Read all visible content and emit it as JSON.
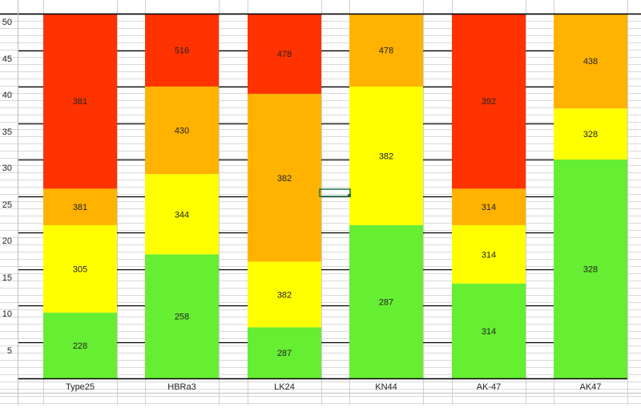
{
  "chart_data": {
    "type": "bar",
    "stacked": true,
    "categories": [
      "Type25",
      "HBRa3",
      "LK24",
      "KN44",
      "AK-47",
      "AK47"
    ],
    "ylim": [
      0,
      50
    ],
    "yticks": [
      5,
      10,
      15,
      20,
      25,
      30,
      35,
      40,
      45,
      50
    ],
    "grid": true,
    "legend": "none",
    "colors": {
      "green": "#66ee33",
      "yellow": "#ffff00",
      "orange": "#ffb300",
      "red": "#ff3300"
    },
    "stacks": [
      {
        "category": "Type25",
        "segments": [
          {
            "from": 0,
            "to": 9,
            "color": "green",
            "label": "228"
          },
          {
            "from": 9,
            "to": 21,
            "color": "yellow",
            "label": "305"
          },
          {
            "from": 21,
            "to": 26,
            "color": "orange",
            "label": "381"
          },
          {
            "from": 26,
            "to": 50,
            "color": "red",
            "label": "381"
          }
        ]
      },
      {
        "category": "HBRa3",
        "segments": [
          {
            "from": 0,
            "to": 17,
            "color": "green",
            "label": "258"
          },
          {
            "from": 17,
            "to": 28,
            "color": "yellow",
            "label": "344"
          },
          {
            "from": 28,
            "to": 40,
            "color": "orange",
            "label": "430"
          },
          {
            "from": 40,
            "to": 50,
            "color": "red",
            "label": "516"
          }
        ]
      },
      {
        "category": "LK24",
        "segments": [
          {
            "from": 0,
            "to": 7,
            "color": "green",
            "label": "287"
          },
          {
            "from": 7,
            "to": 16,
            "color": "yellow",
            "label": "382"
          },
          {
            "from": 16,
            "to": 39,
            "color": "orange",
            "label": "382"
          },
          {
            "from": 39,
            "to": 50,
            "color": "red",
            "label": "478"
          }
        ]
      },
      {
        "category": "KN44",
        "segments": [
          {
            "from": 0,
            "to": 21,
            "color": "green",
            "label": "287"
          },
          {
            "from": 21,
            "to": 40,
            "color": "yellow",
            "label": "382"
          },
          {
            "from": 40,
            "to": 50,
            "color": "orange",
            "label": "478"
          }
        ]
      },
      {
        "category": "AK-47",
        "segments": [
          {
            "from": 0,
            "to": 13,
            "color": "green",
            "label": "314"
          },
          {
            "from": 13,
            "to": 21,
            "color": "yellow",
            "label": "314"
          },
          {
            "from": 21,
            "to": 26,
            "color": "orange",
            "label": "314"
          },
          {
            "from": 26,
            "to": 50,
            "color": "red",
            "label": "392"
          }
        ]
      },
      {
        "category": "AK47",
        "segments": [
          {
            "from": 0,
            "to": 30,
            "color": "green",
            "label": "328"
          },
          {
            "from": 30,
            "to": 37,
            "color": "yellow",
            "label": "328"
          },
          {
            "from": 37,
            "to": 50,
            "color": "orange",
            "label": "438"
          }
        ]
      }
    ]
  }
}
